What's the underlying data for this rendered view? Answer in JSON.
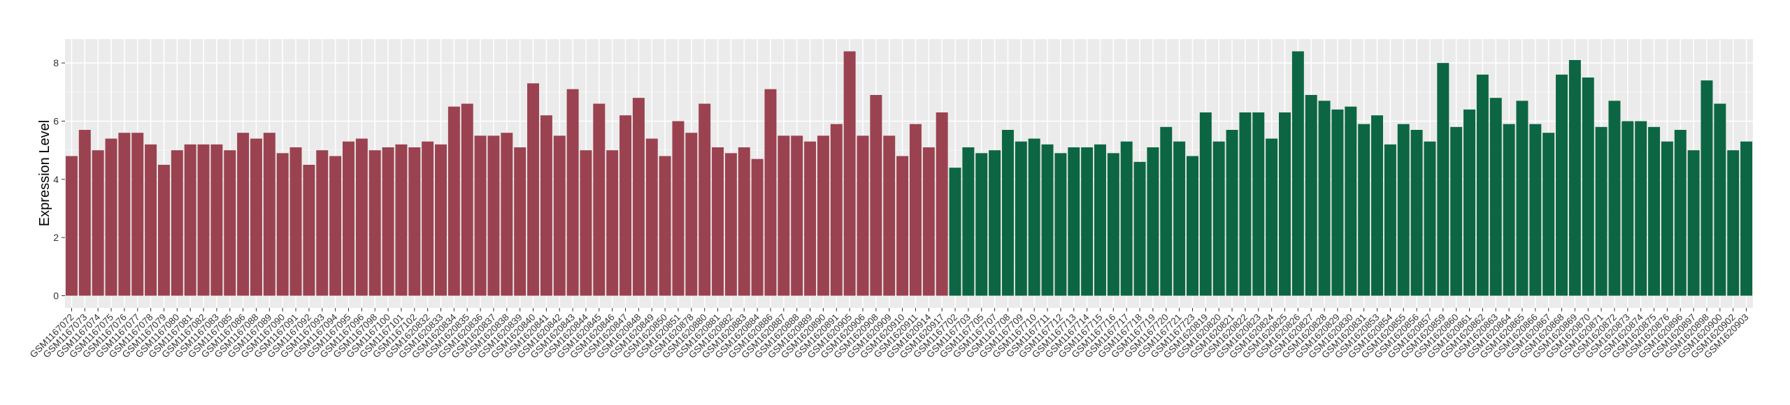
{
  "chart_data": {
    "type": "bar",
    "y_label": "Expression Level",
    "categories": [
      "GSM1167072",
      "GSM1167073",
      "GSM1167074",
      "GSM1167075",
      "GSM1167076",
      "GSM1167077",
      "GSM1167078",
      "GSM1167079",
      "GSM1167080",
      "GSM1167081",
      "GSM1167082",
      "GSM1167083",
      "GSM1167085",
      "GSM1167086",
      "GSM1167088",
      "GSM1167089",
      "GSM1167090",
      "GSM1167091",
      "GSM1167092",
      "GSM1167093",
      "GSM1167094",
      "GSM1167095",
      "GSM1167096",
      "GSM1167098",
      "GSM1167100",
      "GSM1167101",
      "GSM1167102",
      "GSM1620832",
      "GSM1620833",
      "GSM1620834",
      "GSM1620835",
      "GSM1620836",
      "GSM1620837",
      "GSM1620838",
      "GSM1620839",
      "GSM1620840",
      "GSM1620841",
      "GSM1620842",
      "GSM1620843",
      "GSM1620844",
      "GSM1620845",
      "GSM1620846",
      "GSM1620847",
      "GSM1620848",
      "GSM1620849",
      "GSM1620850",
      "GSM1620851",
      "GSM1620878",
      "GSM1620880",
      "GSM1620881",
      "GSM1620882",
      "GSM1620883",
      "GSM1620884",
      "GSM1620886",
      "GSM1620887",
      "GSM1620888",
      "GSM1620889",
      "GSM1620890",
      "GSM1620891",
      "GSM1620905",
      "GSM1620906",
      "GSM1620908",
      "GSM1620909",
      "GSM1620910",
      "GSM1620911",
      "GSM1620914",
      "GSM1620917",
      "GSM1167702",
      "GSM1167703",
      "GSM1167705",
      "GSM1167707",
      "GSM1167708",
      "GSM1167709",
      "GSM1167710",
      "GSM1167711",
      "GSM1167712",
      "GSM1167713",
      "GSM1167714",
      "GSM1167715",
      "GSM1167716",
      "GSM1167717",
      "GSM1167718",
      "GSM1167719",
      "GSM1167720",
      "GSM1167721",
      "GSM1167723",
      "GSM1620819",
      "GSM1620820",
      "GSM1620821",
      "GSM1620822",
      "GSM1620823",
      "GSM1620824",
      "GSM1620825",
      "GSM1620826",
      "GSM1620827",
      "GSM1620828",
      "GSM1620829",
      "GSM1620830",
      "GSM1620831",
      "GSM1620853",
      "GSM1620854",
      "GSM1620855",
      "GSM1620856",
      "GSM1620857",
      "GSM1620859",
      "GSM1620860",
      "GSM1620861",
      "GSM1620862",
      "GSM1620863",
      "GSM1620864",
      "GSM1620865",
      "GSM1620866",
      "GSM1620867",
      "GSM1620868",
      "GSM1620869",
      "GSM1620870",
      "GSM1620871",
      "GSM1620872",
      "GSM1620873",
      "GSM1620874",
      "GSM1620875",
      "GSM1620876",
      "GSM1620896",
      "GSM1620897",
      "GSM1620898",
      "GSM1620900",
      "GSM1620902",
      "GSM1620903"
    ],
    "series": [
      {
        "color": "#9b4250",
        "values": [
          4.8,
          5.7,
          5.0,
          5.4,
          5.6,
          5.6,
          5.2,
          4.5,
          5.0,
          5.2,
          5.2,
          5.2,
          5.0,
          5.6,
          5.4,
          5.6,
          4.9,
          5.1,
          4.5,
          5.0,
          4.8,
          5.3,
          5.4,
          5.0,
          5.1,
          5.2,
          5.1,
          5.3,
          5.2,
          6.5,
          6.6,
          5.5,
          5.5,
          5.6,
          5.1,
          7.3,
          6.2,
          5.5,
          7.1,
          5.0,
          6.6,
          5.0,
          6.2,
          6.8,
          5.4,
          4.8,
          6.0,
          5.6,
          6.6,
          5.1,
          4.9,
          5.1,
          4.7,
          7.1,
          5.5,
          5.5,
          5.3,
          5.5,
          5.9,
          8.4,
          5.5,
          6.9,
          5.5,
          4.8,
          5.9,
          5.1,
          6.3,
          null,
          null,
          null,
          null,
          null,
          null,
          null,
          null,
          null,
          null,
          null,
          null,
          null,
          null,
          null,
          null,
          null,
          null,
          null,
          null,
          null,
          null,
          null,
          null,
          null,
          null,
          null,
          null,
          null,
          null,
          null,
          null,
          null,
          null,
          null,
          null,
          null,
          null,
          null,
          null,
          null,
          null,
          null,
          null,
          null,
          null,
          null,
          null,
          null,
          null,
          null,
          null,
          null,
          null,
          null,
          null,
          null,
          null,
          null,
          null,
          null
        ]
      },
      {
        "color": "#0c6644",
        "values": [
          null,
          null,
          null,
          null,
          null,
          null,
          null,
          null,
          null,
          null,
          null,
          null,
          null,
          null,
          null,
          null,
          null,
          null,
          null,
          null,
          null,
          null,
          null,
          null,
          null,
          null,
          null,
          null,
          null,
          null,
          null,
          null,
          null,
          null,
          null,
          null,
          null,
          null,
          null,
          null,
          null,
          null,
          null,
          null,
          null,
          null,
          null,
          null,
          null,
          null,
          null,
          null,
          null,
          null,
          null,
          null,
          null,
          null,
          null,
          null,
          null,
          null,
          null,
          null,
          null,
          null,
          null,
          4.4,
          5.1,
          4.9,
          5.0,
          5.7,
          5.3,
          5.4,
          5.2,
          4.9,
          5.1,
          5.1,
          5.2,
          4.9,
          5.3,
          4.6,
          5.1,
          5.8,
          5.3,
          4.8,
          6.3,
          5.3,
          5.7,
          6.3,
          6.3,
          5.4,
          6.3,
          8.4,
          6.9,
          6.7,
          6.4,
          6.5,
          5.9,
          6.2,
          5.2,
          5.9,
          5.7,
          5.3,
          8.0,
          5.8,
          6.4,
          7.6,
          6.8,
          5.9,
          6.7,
          5.9,
          5.6,
          7.6,
          8.1,
          7.5,
          5.8,
          6.7,
          6.0,
          6.0,
          5.8,
          5.3,
          5.7,
          5.0,
          7.4,
          6.6,
          5.0,
          5.3
        ]
      }
    ],
    "ylim": [
      -0.42,
      8.82
    ],
    "yticks": [
      0,
      2,
      4,
      6,
      8
    ],
    "grid": true
  }
}
